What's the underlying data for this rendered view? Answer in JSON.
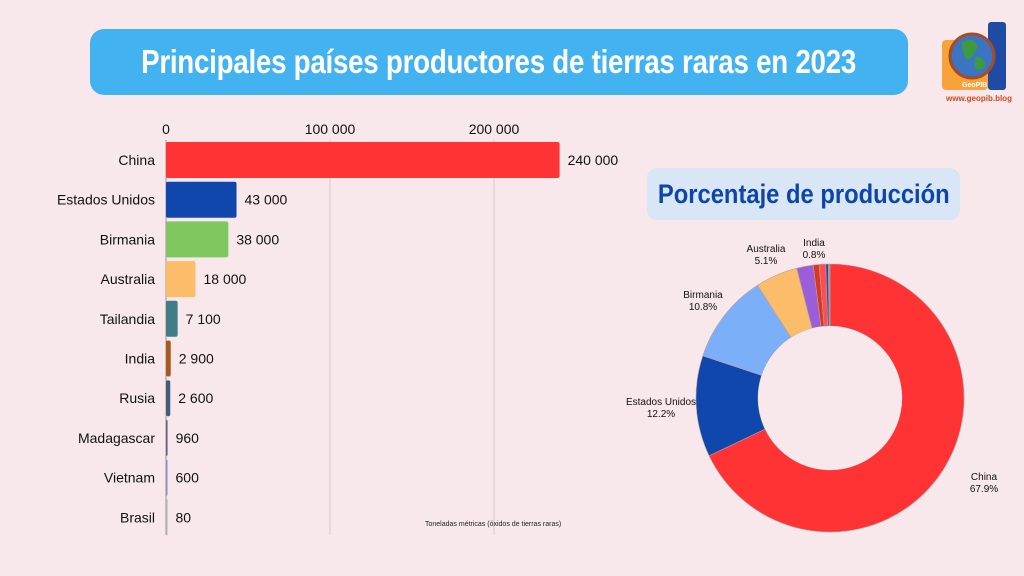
{
  "title": "Principales países productores de tierras raras en 2023",
  "logo": {
    "name": "GeoPIB",
    "url": "www.geopib.blog"
  },
  "pie_title": "Porcentaje de producción",
  "unit_note": "Toneladas métricas (óxidos de tierras raras)",
  "colors": {
    "background": "#f8e8ec",
    "banner": "#42b3f0",
    "pie_title_text": "#0d46a8",
    "pie_title_bg": "#d8e6f5"
  },
  "chart_data": [
    {
      "type": "bar",
      "orientation": "horizontal",
      "categories": [
        "China",
        "Estados Unidos",
        "Birmania",
        "Australia",
        "Tailandia",
        "India",
        "Rusia",
        "Madagascar",
        "Vietnam",
        "Brasil"
      ],
      "values": [
        240000,
        43000,
        38000,
        18000,
        7100,
        2900,
        2600,
        960,
        600,
        80
      ],
      "value_labels": [
        "240 000",
        "43 000",
        "38 000",
        "18 000",
        "7 100",
        "2 900",
        "2 600",
        "960",
        "600",
        "80"
      ],
      "colors": [
        "#ff3333",
        "#0f47ad",
        "#7ec85f",
        "#fcbd6a",
        "#417d86",
        "#a85a1e",
        "#445d7a",
        "#6d5c82",
        "#8a8fc4",
        "#b0b0b0"
      ],
      "xlim": [
        0,
        260000
      ],
      "x_ticks": [
        0,
        100000,
        200000
      ],
      "x_tick_labels": [
        "0",
        "100 000",
        "200 000"
      ],
      "xlabel": "Toneladas métricas (óxidos de tierras raras)",
      "grid": true
    },
    {
      "type": "pie",
      "donut": true,
      "title": "Porcentaje de producción",
      "slices": [
        {
          "label": "China",
          "value": 67.9,
          "pct_label": "67.9%",
          "color": "#ff3333",
          "show_label": true
        },
        {
          "label": "Estados Unidos",
          "value": 12.2,
          "pct_label": "12.2%",
          "color": "#0f47ad",
          "show_label": true
        },
        {
          "label": "Birmania",
          "value": 10.8,
          "pct_label": "10.8%",
          "color": "#7bb0f8",
          "show_label": true
        },
        {
          "label": "Australia",
          "value": 5.1,
          "pct_label": "5.1%",
          "color": "#fcbd6a",
          "show_label": true
        },
        {
          "label": "Tailandia",
          "value": 2.0,
          "pct_label": "",
          "color": "#9b5ed8",
          "show_label": false
        },
        {
          "label": "Rusia",
          "value": 0.7,
          "pct_label": "",
          "color": "#d9381e",
          "show_label": false
        },
        {
          "label": "India",
          "value": 0.8,
          "pct_label": "0.8%",
          "color": "#ff4d55",
          "show_label": true
        },
        {
          "label": "Madagascar",
          "value": 0.3,
          "pct_label": "",
          "color": "#2a4a8a",
          "show_label": false
        },
        {
          "label": "Vietnam",
          "value": 0.2,
          "pct_label": "",
          "color": "#8a8fc4",
          "show_label": false
        }
      ]
    }
  ]
}
